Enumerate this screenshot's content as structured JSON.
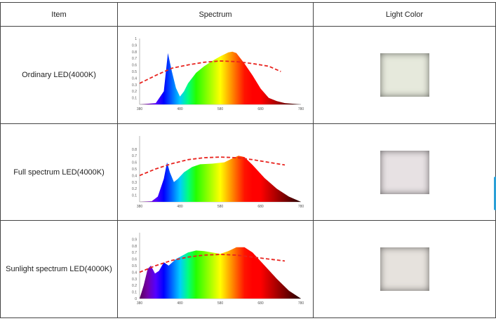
{
  "headers": {
    "item": "Item",
    "spectrum": "Spectrum",
    "light_color": "Light Color"
  },
  "rows": [
    {
      "name": "Ordinary LED(4000K)",
      "swatch": "#e6e9dc",
      "y_ticks": [
        "1",
        "0.9",
        "0.8",
        "0.7",
        "0.6",
        "0.5",
        "0.4",
        "0.3",
        "0.2",
        "0.1"
      ],
      "x_ticks": [
        "380",
        "480",
        "580",
        "680",
        "780"
      ],
      "spd": [
        [
          380,
          0
        ],
        [
          420,
          0.02
        ],
        [
          440,
          0.2
        ],
        [
          450,
          0.78
        ],
        [
          460,
          0.5
        ],
        [
          470,
          0.25
        ],
        [
          480,
          0.12
        ],
        [
          490,
          0.2
        ],
        [
          500,
          0.32
        ],
        [
          520,
          0.48
        ],
        [
          540,
          0.58
        ],
        [
          560,
          0.66
        ],
        [
          580,
          0.73
        ],
        [
          600,
          0.79
        ],
        [
          610,
          0.8
        ],
        [
          620,
          0.78
        ],
        [
          640,
          0.62
        ],
        [
          660,
          0.44
        ],
        [
          680,
          0.24
        ],
        [
          700,
          0.1
        ],
        [
          720,
          0.05
        ],
        [
          740,
          0.02
        ],
        [
          780,
          0
        ]
      ],
      "curve": [
        [
          380,
          0.32
        ],
        [
          420,
          0.44
        ],
        [
          460,
          0.55
        ],
        [
          500,
          0.6
        ],
        [
          540,
          0.64
        ],
        [
          580,
          0.66
        ],
        [
          620,
          0.65
        ],
        [
          660,
          0.62
        ],
        [
          700,
          0.58
        ],
        [
          730,
          0.5
        ]
      ]
    },
    {
      "name": "Full spectrum LED(4000K)",
      "swatch": "#e7e1e3",
      "y_ticks": [
        "0.8",
        "0.7",
        "0.6",
        "0.5",
        "0.4",
        "0.3",
        "0.2",
        "0.1"
      ],
      "x_ticks": [
        "380",
        "480",
        "580",
        "680",
        "780"
      ],
      "spd": [
        [
          380,
          0
        ],
        [
          410,
          0.01
        ],
        [
          425,
          0.08
        ],
        [
          440,
          0.35
        ],
        [
          448,
          0.6
        ],
        [
          455,
          0.45
        ],
        [
          465,
          0.3
        ],
        [
          475,
          0.35
        ],
        [
          490,
          0.45
        ],
        [
          510,
          0.53
        ],
        [
          530,
          0.57
        ],
        [
          560,
          0.58
        ],
        [
          590,
          0.6
        ],
        [
          610,
          0.66
        ],
        [
          625,
          0.7
        ],
        [
          640,
          0.68
        ],
        [
          660,
          0.56
        ],
        [
          690,
          0.36
        ],
        [
          720,
          0.2
        ],
        [
          750,
          0.08
        ],
        [
          780,
          0
        ]
      ],
      "curve": [
        [
          380,
          0.4
        ],
        [
          420,
          0.5
        ],
        [
          460,
          0.58
        ],
        [
          500,
          0.64
        ],
        [
          540,
          0.67
        ],
        [
          580,
          0.68
        ],
        [
          620,
          0.67
        ],
        [
          660,
          0.64
        ],
        [
          700,
          0.6
        ],
        [
          740,
          0.56
        ]
      ]
    },
    {
      "name": "Sunlight spectrum LED(4000K)",
      "swatch": "#e6e2dd",
      "y_ticks": [
        "0.9",
        "0.8",
        "0.7",
        "0.6",
        "0.5",
        "0.4",
        "0.3",
        "0.2",
        "0.1",
        "0"
      ],
      "x_ticks": [
        "380",
        "480",
        "580",
        "680",
        "780"
      ],
      "spd": [
        [
          380,
          0
        ],
        [
          390,
          0.2
        ],
        [
          400,
          0.45
        ],
        [
          408,
          0.5
        ],
        [
          418,
          0.38
        ],
        [
          428,
          0.42
        ],
        [
          440,
          0.55
        ],
        [
          452,
          0.5
        ],
        [
          470,
          0.6
        ],
        [
          500,
          0.7
        ],
        [
          520,
          0.73
        ],
        [
          540,
          0.72
        ],
        [
          560,
          0.7
        ],
        [
          580,
          0.68
        ],
        [
          600,
          0.72
        ],
        [
          620,
          0.78
        ],
        [
          640,
          0.78
        ],
        [
          660,
          0.7
        ],
        [
          690,
          0.5
        ],
        [
          720,
          0.3
        ],
        [
          750,
          0.12
        ],
        [
          780,
          0
        ]
      ],
      "curve": [
        [
          380,
          0.4
        ],
        [
          420,
          0.5
        ],
        [
          460,
          0.58
        ],
        [
          500,
          0.63
        ],
        [
          540,
          0.66
        ],
        [
          580,
          0.67
        ],
        [
          620,
          0.66
        ],
        [
          660,
          0.63
        ],
        [
          700,
          0.6
        ],
        [
          740,
          0.57
        ]
      ]
    }
  ]
}
